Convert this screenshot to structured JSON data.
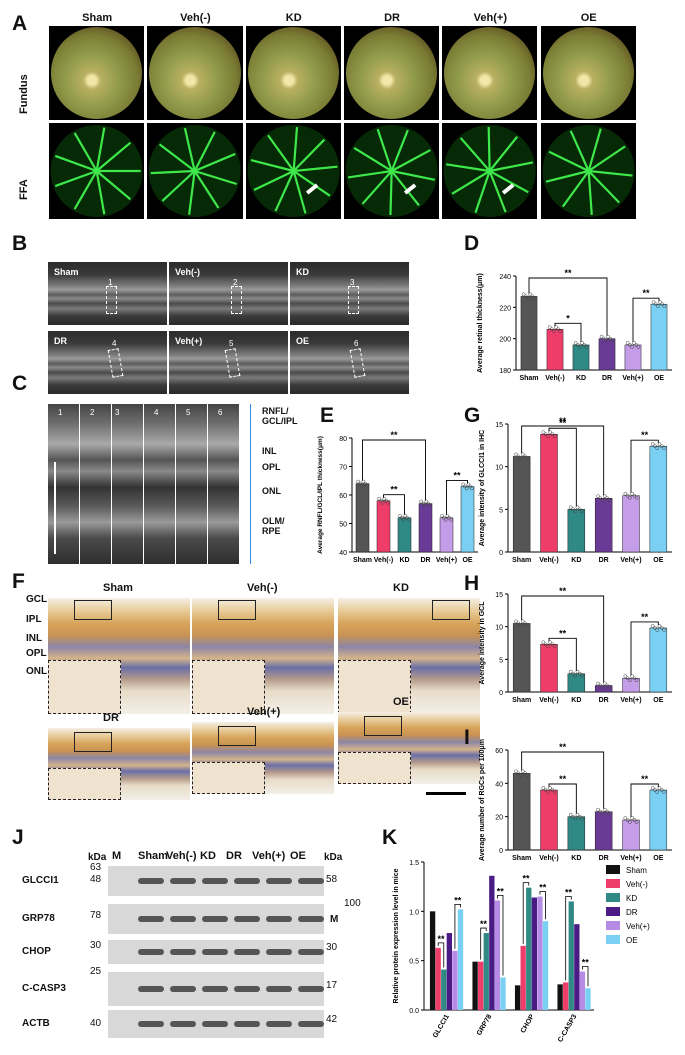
{
  "panels": {
    "A": {
      "letter": "A",
      "groups": [
        "Sham",
        "Veh(-)",
        "KD",
        "DR",
        "Veh(+)",
        "OE"
      ],
      "row_labels": [
        "Fundus",
        "FFA"
      ]
    },
    "B": {
      "letter": "B",
      "labels": [
        "Sham",
        "Veh(-)",
        "KD",
        "DR",
        "Veh(+)",
        "OE"
      ],
      "numbers": [
        "1",
        "2",
        "3",
        "4",
        "5",
        "6"
      ]
    },
    "C": {
      "letter": "C",
      "columns": [
        "1",
        "2",
        "3",
        "4",
        "5",
        "6"
      ],
      "layers": [
        "RNFL/\nGCL/IPL",
        "INL",
        "OPL",
        "ONL",
        "OLM/\nRPE"
      ]
    },
    "F": {
      "letter": "F",
      "labels": [
        "Sham",
        "Veh(-)",
        "KD",
        "DR",
        "Veh(+)",
        "OE"
      ],
      "layers": [
        "GCL",
        "IPL",
        "INL",
        "OPL",
        "ONL"
      ]
    },
    "J": {
      "letter": "J",
      "header": {
        "kda_left": "kDa",
        "m": "M",
        "lanes": [
          "Sham",
          "Veh(-)",
          "KD",
          "DR",
          "Veh(+)",
          "OE"
        ],
        "kda_right": "kDa"
      },
      "bands": [
        "GLCCI1",
        "GRP78",
        "CHOP",
        "C-CASP3",
        "ACTB"
      ],
      "left_markers": [
        "63",
        "48",
        "78",
        "30",
        "25",
        "40"
      ],
      "right_markers": [
        "58",
        "100",
        "30",
        "17",
        "42"
      ],
      "m_insert": "M"
    },
    "D": {
      "letter": "D"
    },
    "E": {
      "letter": "E"
    },
    "G": {
      "letter": "G"
    },
    "H": {
      "letter": "H"
    },
    "I": {
      "letter": "I"
    },
    "K": {
      "letter": "K"
    }
  },
  "chart_data": [
    {
      "id": "D",
      "type": "bar",
      "categories": [
        "Sham",
        "Veh(-)",
        "KD",
        "DR",
        "Veh(+)",
        "OE"
      ],
      "values": [
        227,
        206,
        196,
        200,
        196,
        222
      ],
      "ylabel": "Average retinal thickness(μm)",
      "ylim": [
        180,
        240
      ],
      "yticks": [
        180,
        200,
        220,
        240
      ],
      "colors": [
        "#555555",
        "#ef3d6a",
        "#2f8a86",
        "#6a3b96",
        "#c49ce8",
        "#7ad0f2"
      ],
      "sig": [
        {
          "from": 0,
          "to": 3,
          "label": "**"
        },
        {
          "from": 1,
          "to": 2,
          "label": "*"
        },
        {
          "from": 4,
          "to": 5,
          "label": "**"
        }
      ]
    },
    {
      "id": "E",
      "type": "bar",
      "categories": [
        "Sham",
        "Veh(-)",
        "KD",
        "DR",
        "Veh(+)",
        "OE"
      ],
      "values": [
        64,
        58,
        52,
        57,
        52,
        63
      ],
      "ylabel": "Average RNFL/GCL/IPL thickness(μm)",
      "ylim": [
        40,
        80
      ],
      "yticks": [
        40,
        50,
        60,
        70,
        80
      ],
      "colors": [
        "#555555",
        "#ef3d6a",
        "#2f8a86",
        "#6a3b96",
        "#c49ce8",
        "#7ad0f2"
      ],
      "sig": [
        {
          "from": 0,
          "to": 3,
          "label": "**"
        },
        {
          "from": 1,
          "to": 2,
          "label": "**"
        },
        {
          "from": 4,
          "to": 5,
          "label": "**"
        }
      ]
    },
    {
      "id": "G",
      "type": "bar",
      "categories": [
        "Sham",
        "Veh(-)",
        "KD",
        "DR",
        "Veh(+)",
        "OE"
      ],
      "values": [
        11.2,
        13.8,
        5,
        6.3,
        6.6,
        12.4
      ],
      "ylabel": "Average  intensity of GLCCI1 in IHC",
      "ylim": [
        0,
        15
      ],
      "yticks": [
        0,
        5,
        10,
        15
      ],
      "colors": [
        "#555555",
        "#ef3d6a",
        "#2f8a86",
        "#6a3b96",
        "#c49ce8",
        "#7ad0f2"
      ],
      "sig": [
        {
          "from": 0,
          "to": 3,
          "label": "**"
        },
        {
          "from": 1,
          "to": 2,
          "label": "**"
        },
        {
          "from": 4,
          "to": 5,
          "label": "**"
        }
      ]
    },
    {
      "id": "H",
      "type": "bar",
      "categories": [
        "Sham",
        "Veh(-)",
        "KD",
        "DR",
        "Veh(+)",
        "OE"
      ],
      "values": [
        10.5,
        7.3,
        2.8,
        1,
        2.1,
        9.8
      ],
      "ylabel": "Average  intensity in GCL",
      "ylim": [
        0,
        15
      ],
      "yticks": [
        0,
        5,
        10,
        15
      ],
      "colors": [
        "#555555",
        "#ef3d6a",
        "#2f8a86",
        "#6a3b96",
        "#c49ce8",
        "#7ad0f2"
      ],
      "sig": [
        {
          "from": 0,
          "to": 3,
          "label": "**"
        },
        {
          "from": 1,
          "to": 2,
          "label": "**"
        },
        {
          "from": 4,
          "to": 5,
          "label": "**"
        }
      ]
    },
    {
      "id": "I",
      "type": "bar",
      "categories": [
        "Sham",
        "Veh(-)",
        "KD",
        "DR",
        "Veh(+)",
        "OE"
      ],
      "values": [
        46,
        36,
        20,
        23,
        18,
        36
      ],
      "ylabel": "Average number of RGCs per 100μm",
      "ylim": [
        0,
        60
      ],
      "yticks": [
        0,
        20,
        40,
        60
      ],
      "colors": [
        "#555555",
        "#ef3d6a",
        "#2f8a86",
        "#6a3b96",
        "#c49ce8",
        "#7ad0f2"
      ],
      "sig": [
        {
          "from": 0,
          "to": 3,
          "label": "**"
        },
        {
          "from": 1,
          "to": 2,
          "label": "**"
        },
        {
          "from": 4,
          "to": 5,
          "label": "**"
        }
      ]
    },
    {
      "id": "K",
      "type": "bar",
      "categories": [
        "GLCCI1",
        "GRP78",
        "CHOP",
        "C-CASP3"
      ],
      "series": [
        {
          "name": "Sham",
          "values": [
            1.0,
            0.49,
            0.25,
            0.26
          ]
        },
        {
          "name": "Veh(-)",
          "values": [
            0.63,
            0.49,
            0.65,
            0.28
          ]
        },
        {
          "name": "KD",
          "values": [
            0.41,
            0.78,
            1.24,
            1.1
          ]
        },
        {
          "name": "DR",
          "values": [
            0.78,
            1.36,
            1.14,
            0.87
          ]
        },
        {
          "name": "Veh(+)",
          "values": [
            0.6,
            1.11,
            1.15,
            0.39
          ]
        },
        {
          "name": "OE",
          "values": [
            1.02,
            0.33,
            0.9,
            0.22
          ]
        }
      ],
      "colors": [
        "#111111",
        "#ef3d6a",
        "#2f8a86",
        "#4a1b84",
        "#b68be6",
        "#7ad0f2"
      ],
      "ylabel": "Relative protein expression level in mice",
      "ylim": [
        0,
        1.5
      ],
      "yticks": [
        "0.0",
        "0.5",
        "1.0",
        "1.5"
      ],
      "legend": "top-right",
      "sig": [
        {
          "cat": 0,
          "from": 1,
          "to": 2,
          "label": "**"
        },
        {
          "cat": 0,
          "from": 4,
          "to": 5,
          "label": "**"
        },
        {
          "cat": 1,
          "from": 1,
          "to": 2,
          "label": "**"
        },
        {
          "cat": 1,
          "from": 4,
          "to": 5,
          "label": "**"
        },
        {
          "cat": 2,
          "from": 1,
          "to": 2,
          "label": "**"
        },
        {
          "cat": 2,
          "from": 4,
          "to": 5,
          "label": "**"
        },
        {
          "cat": 3,
          "from": 1,
          "to": 2,
          "label": "**"
        },
        {
          "cat": 3,
          "from": 4,
          "to": 5,
          "label": "**"
        }
      ]
    }
  ]
}
